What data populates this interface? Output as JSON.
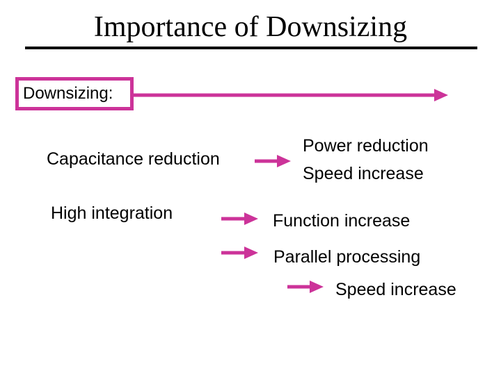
{
  "title": "Importance of Downsizing",
  "accent_color": "#cc3399",
  "diagram": {
    "root": "Downsizing:",
    "cause_1": "Capacitance reduction",
    "effect_1a": "Power reduction",
    "effect_1b": "Speed increase",
    "cause_2": "High integration",
    "effect_2": "Function increase",
    "effect_3": "Parallel processing",
    "effect_3b": "Speed increase"
  }
}
